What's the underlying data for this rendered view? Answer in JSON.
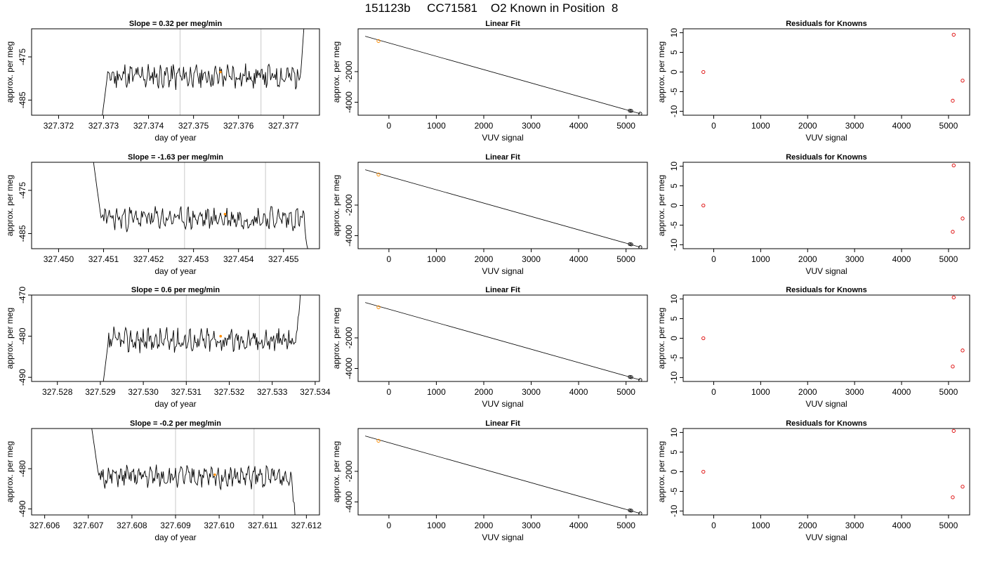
{
  "title": "151123b     CC71581    O2 Known in Position  8",
  "rows": [
    {
      "time": {
        "title": "Slope =  0.32  per meg/min",
        "xlabel": "day of year",
        "ylabel": "approx. per meg",
        "xlim": [
          327.3714,
          327.3778
        ],
        "ylim": [
          -488.5,
          -468.5
        ],
        "xticks": [
          "327.372",
          "327.373",
          "327.374",
          "327.375",
          "327.376",
          "327.377"
        ],
        "xtick_values": [
          327.372,
          327.373,
          327.374,
          327.375,
          327.376,
          327.377
        ],
        "yticks": [
          "-485",
          "-475"
        ],
        "ytick_values": [
          -485,
          -475
        ],
        "trace_start": 327.3729,
        "trace_end": 327.3775,
        "vlines": [
          327.3747,
          327.3765
        ],
        "marker": {
          "x": 327.3756,
          "y": -478.5
        },
        "level": -479.5,
        "amp": 2.2,
        "seed": 11
      },
      "fit": {
        "title": "Linear Fit",
        "xlabel": "VUV signal",
        "ylabel": "approx. per meg",
        "xlim": [
          -650,
          5450
        ],
        "ylim": [
          -4850,
          800
        ],
        "xticks": [
          "0",
          "1000",
          "2000",
          "3000",
          "4000",
          "5000"
        ],
        "xtick_values": [
          0,
          1000,
          2000,
          3000,
          4000,
          5000
        ],
        "yticks": [
          "-2000",
          "-4000"
        ],
        "ytick_values": [
          -2000,
          -4000
        ],
        "line": {
          "x": [
            -500,
            5300
          ],
          "y": [
            310,
            -4750
          ]
        },
        "points": [
          {
            "x": -220,
            "y": 0,
            "color": "#ff8c00"
          },
          {
            "x": 5080,
            "y": -4550,
            "color": "#000000"
          },
          {
            "x": 5110,
            "y": -4570,
            "color": "#000000"
          },
          {
            "x": 5300,
            "y": -4750,
            "color": "#000000"
          }
        ]
      },
      "resid": {
        "title": "Residuals for Knowns",
        "xlabel": "VUV signal",
        "ylabel": "approx. per meg",
        "xlim": [
          -650,
          5450
        ],
        "ylim": [
          -11,
          11
        ],
        "xticks": [
          "0",
          "1000",
          "2000",
          "3000",
          "4000",
          "5000"
        ],
        "xtick_values": [
          0,
          1000,
          2000,
          3000,
          4000,
          5000
        ],
        "yticks": [
          "-10",
          "-5",
          "0",
          "5",
          "10"
        ],
        "ytick_values": [
          -10,
          -5,
          0,
          5,
          10
        ],
        "points": [
          {
            "x": -220,
            "y": 0
          },
          {
            "x": 5090,
            "y": -7.3
          },
          {
            "x": 5110,
            "y": 9.5
          },
          {
            "x": 5300,
            "y": -2.2
          }
        ]
      }
    },
    {
      "time": {
        "title": "Slope =  -1.63  per meg/min",
        "xlabel": "day of year",
        "ylabel": "approx. per meg",
        "xlim": [
          327.4494,
          327.4558
        ],
        "ylim": [
          -488.5,
          -468.5
        ],
        "xticks": [
          "327.450",
          "327.451",
          "327.452",
          "327.453",
          "327.454",
          "327.455"
        ],
        "xtick_values": [
          327.45,
          327.451,
          327.452,
          327.453,
          327.454,
          327.455
        ],
        "yticks": [
          "-485",
          "-475"
        ],
        "ytick_values": [
          -485,
          -475
        ],
        "trace_start": 327.4507,
        "trace_end": 327.4556,
        "vlines": [
          327.4528,
          327.4546
        ],
        "marker": {
          "x": 327.4537,
          "y": -480.5
        },
        "level": -481.5,
        "amp": 2.0,
        "seed": 23
      },
      "fit": {
        "title": "Linear Fit",
        "xlabel": "VUV signal",
        "ylabel": "approx. per meg",
        "xlim": [
          -650,
          5450
        ],
        "ylim": [
          -4850,
          800
        ],
        "xticks": [
          "0",
          "1000",
          "2000",
          "3000",
          "4000",
          "5000"
        ],
        "xtick_values": [
          0,
          1000,
          2000,
          3000,
          4000,
          5000
        ],
        "yticks": [
          "-2000",
          "-4000"
        ],
        "ytick_values": [
          -2000,
          -4000
        ],
        "line": {
          "x": [
            -500,
            5300
          ],
          "y": [
            310,
            -4750
          ]
        },
        "points": [
          {
            "x": -220,
            "y": 0,
            "color": "#ff8c00"
          },
          {
            "x": 5080,
            "y": -4550,
            "color": "#000000"
          },
          {
            "x": 5110,
            "y": -4570,
            "color": "#000000"
          },
          {
            "x": 5300,
            "y": -4750,
            "color": "#000000"
          }
        ]
      },
      "resid": {
        "title": "Residuals for Knowns",
        "xlabel": "VUV signal",
        "ylabel": "approx. per meg",
        "xlim": [
          -650,
          5450
        ],
        "ylim": [
          -11,
          11
        ],
        "xticks": [
          "0",
          "1000",
          "2000",
          "3000",
          "4000",
          "5000"
        ],
        "xtick_values": [
          0,
          1000,
          2000,
          3000,
          4000,
          5000
        ],
        "yticks": [
          "-10",
          "-5",
          "0",
          "5",
          "10"
        ],
        "ytick_values": [
          -10,
          -5,
          0,
          5,
          10
        ],
        "points": [
          {
            "x": -220,
            "y": 0
          },
          {
            "x": 5090,
            "y": -6.7
          },
          {
            "x": 5110,
            "y": 10.2
          },
          {
            "x": 5300,
            "y": -3.3
          }
        ]
      }
    },
    {
      "time": {
        "title": "Slope =  0.6  per meg/min",
        "xlabel": "day of year",
        "ylabel": "approx. per meg",
        "xlim": [
          327.5274,
          327.5341
        ],
        "ylim": [
          -491,
          -470
        ],
        "xticks": [
          "327.528",
          "327.529",
          "327.530",
          "327.531",
          "327.532",
          "327.533",
          "327.534"
        ],
        "xtick_values": [
          327.528,
          327.529,
          327.53,
          327.531,
          327.532,
          327.533,
          327.534
        ],
        "yticks": [
          "-490",
          "-480",
          "-470"
        ],
        "ytick_values": [
          -490,
          -480,
          -470
        ],
        "trace_start": 327.529,
        "trace_end": 327.5337,
        "vlines": [
          327.531,
          327.5327
        ],
        "marker": {
          "x": 327.5318,
          "y": -480.0
        },
        "level": -481.0,
        "amp": 2.2,
        "seed": 37
      },
      "fit": {
        "title": "Linear Fit",
        "xlabel": "VUV signal",
        "ylabel": "approx. per meg",
        "xlim": [
          -650,
          5450
        ],
        "ylim": [
          -4850,
          800
        ],
        "xticks": [
          "0",
          "1000",
          "2000",
          "3000",
          "4000",
          "5000"
        ],
        "xtick_values": [
          0,
          1000,
          2000,
          3000,
          4000,
          5000
        ],
        "yticks": [
          "-2000",
          "-4000"
        ],
        "ytick_values": [
          -2000,
          -4000
        ],
        "line": {
          "x": [
            -500,
            5300
          ],
          "y": [
            310,
            -4750
          ]
        },
        "points": [
          {
            "x": -220,
            "y": 0,
            "color": "#ff8c00"
          },
          {
            "x": 5080,
            "y": -4550,
            "color": "#000000"
          },
          {
            "x": 5110,
            "y": -4570,
            "color": "#000000"
          },
          {
            "x": 5300,
            "y": -4750,
            "color": "#000000"
          }
        ]
      },
      "resid": {
        "title": "Residuals for Knowns",
        "xlabel": "VUV signal",
        "ylabel": "approx. per meg",
        "xlim": [
          -650,
          5450
        ],
        "ylim": [
          -11,
          11
        ],
        "xticks": [
          "0",
          "1000",
          "2000",
          "3000",
          "4000",
          "5000"
        ],
        "xtick_values": [
          0,
          1000,
          2000,
          3000,
          4000,
          5000
        ],
        "yticks": [
          "-10",
          "-5",
          "0",
          "5",
          "10"
        ],
        "ytick_values": [
          -10,
          -5,
          0,
          5,
          10
        ],
        "points": [
          {
            "x": -220,
            "y": 0
          },
          {
            "x": 5090,
            "y": -7.2
          },
          {
            "x": 5110,
            "y": 10.4
          },
          {
            "x": 5300,
            "y": -3.1
          }
        ]
      }
    },
    {
      "time": {
        "title": "Slope =  -0.2  per meg/min",
        "xlabel": "day of year",
        "ylabel": "approx. per meg",
        "xlim": [
          327.6057,
          327.6123
        ],
        "ylim": [
          -491.5,
          -470
        ],
        "xticks": [
          "327.606",
          "327.607",
          "327.608",
          "327.609",
          "327.610",
          "327.611",
          "327.612"
        ],
        "xtick_values": [
          327.606,
          327.607,
          327.608,
          327.609,
          327.61,
          327.611,
          327.612
        ],
        "yticks": [
          "-490",
          "-480"
        ],
        "ytick_values": [
          -490,
          -480
        ],
        "trace_start": 327.607,
        "trace_end": 327.6118,
        "vlines": [
          327.609,
          327.6108
        ],
        "marker": {
          "x": 327.6099,
          "y": -481.5
        },
        "level": -482.0,
        "amp": 2.0,
        "seed": 51
      },
      "fit": {
        "title": "Linear Fit",
        "xlabel": "VUV signal",
        "ylabel": "approx. per meg",
        "xlim": [
          -650,
          5450
        ],
        "ylim": [
          -4850,
          800
        ],
        "xticks": [
          "0",
          "1000",
          "2000",
          "3000",
          "4000",
          "5000"
        ],
        "xtick_values": [
          0,
          1000,
          2000,
          3000,
          4000,
          5000
        ],
        "yticks": [
          "-2000",
          "-4000"
        ],
        "ytick_values": [
          -2000,
          -4000
        ],
        "line": {
          "x": [
            -500,
            5300
          ],
          "y": [
            310,
            -4750
          ]
        },
        "points": [
          {
            "x": -220,
            "y": 0,
            "color": "#ff8c00"
          },
          {
            "x": 5080,
            "y": -4550,
            "color": "#000000"
          },
          {
            "x": 5110,
            "y": -4570,
            "color": "#000000"
          },
          {
            "x": 5300,
            "y": -4750,
            "color": "#000000"
          }
        ]
      },
      "resid": {
        "title": "Residuals for Knowns",
        "xlabel": "VUV signal",
        "ylabel": "approx. per meg",
        "xlim": [
          -650,
          5450
        ],
        "ylim": [
          -11,
          11
        ],
        "xticks": [
          "0",
          "1000",
          "2000",
          "3000",
          "4000",
          "5000"
        ],
        "xtick_values": [
          0,
          1000,
          2000,
          3000,
          4000,
          5000
        ],
        "yticks": [
          "-10",
          "-5",
          "0",
          "5",
          "10"
        ],
        "ytick_values": [
          -10,
          -5,
          0,
          5,
          10
        ],
        "points": [
          {
            "x": -220,
            "y": 0
          },
          {
            "x": 5090,
            "y": -6.5
          },
          {
            "x": 5110,
            "y": 10.4
          },
          {
            "x": 5300,
            "y": -3.8
          }
        ]
      }
    }
  ],
  "colors": {
    "trace": "#000000",
    "vline": "#c8c8c8",
    "marker": "#ff8c00",
    "resid_point": "#dd0000",
    "fit_line": "#000000"
  },
  "chart_data": [
    {
      "type": "line",
      "title": "Slope =  0.32  per meg/min",
      "xlabel": "day of year",
      "ylabel": "approx. per meg",
      "xlim": [
        327.3714,
        327.3778
      ],
      "ylim": [
        -488.5,
        -468.5
      ]
    },
    {
      "type": "scatter",
      "title": "Linear Fit",
      "xlabel": "VUV signal",
      "ylabel": "approx. per meg",
      "x": [
        -220,
        5080,
        5110,
        5300
      ],
      "y": [
        0,
        -4550,
        -4570,
        -4750
      ]
    },
    {
      "type": "scatter",
      "title": "Residuals for Knowns",
      "xlabel": "VUV signal",
      "ylabel": "approx. per meg",
      "x": [
        -220,
        5090,
        5110,
        5300
      ],
      "y": [
        0,
        -7.3,
        9.5,
        -2.2
      ]
    },
    {
      "type": "line",
      "title": "Slope =  -1.63  per meg/min",
      "xlabel": "day of year",
      "ylabel": "approx. per meg",
      "xlim": [
        327.4494,
        327.4558
      ],
      "ylim": [
        -488.5,
        -468.5
      ]
    },
    {
      "type": "scatter",
      "title": "Linear Fit",
      "xlabel": "VUV signal",
      "ylabel": "approx. per meg",
      "x": [
        -220,
        5080,
        5110,
        5300
      ],
      "y": [
        0,
        -4550,
        -4570,
        -4750
      ]
    },
    {
      "type": "scatter",
      "title": "Residuals for Knowns",
      "xlabel": "VUV signal",
      "ylabel": "approx. per meg",
      "x": [
        -220,
        5090,
        5110,
        5300
      ],
      "y": [
        0,
        -6.7,
        10.2,
        -3.3
      ]
    },
    {
      "type": "line",
      "title": "Slope =  0.6  per meg/min",
      "xlabel": "day of year",
      "ylabel": "approx. per meg",
      "xlim": [
        327.5274,
        327.5341
      ],
      "ylim": [
        -491,
        -470
      ]
    },
    {
      "type": "scatter",
      "title": "Linear Fit",
      "xlabel": "VUV signal",
      "ylabel": "approx. per meg",
      "x": [
        -220,
        5080,
        5110,
        5300
      ],
      "y": [
        0,
        -4550,
        -4570,
        -4750
      ]
    },
    {
      "type": "scatter",
      "title": "Residuals for Knowns",
      "xlabel": "VUV signal",
      "ylabel": "approx. per meg",
      "x": [
        -220,
        5090,
        5110,
        5300
      ],
      "y": [
        0,
        -7.2,
        10.4,
        -3.1
      ]
    },
    {
      "type": "line",
      "title": "Slope =  -0.2  per meg/min",
      "xlabel": "day of year",
      "ylabel": "approx. per meg",
      "xlim": [
        327.6057,
        327.6123
      ],
      "ylim": [
        -491.5,
        -470
      ]
    },
    {
      "type": "scatter",
      "title": "Linear Fit",
      "xlabel": "VUV signal",
      "ylabel": "approx. per meg",
      "x": [
        -220,
        5080,
        5110,
        5300
      ],
      "y": [
        0,
        -4550,
        -4570,
        -4750
      ]
    },
    {
      "type": "scatter",
      "title": "Residuals for Knowns",
      "xlabel": "VUV signal",
      "ylabel": "approx. per meg",
      "x": [
        -220,
        5090,
        5110,
        5300
      ],
      "y": [
        0,
        -6.5,
        10.4,
        -3.8
      ]
    }
  ]
}
